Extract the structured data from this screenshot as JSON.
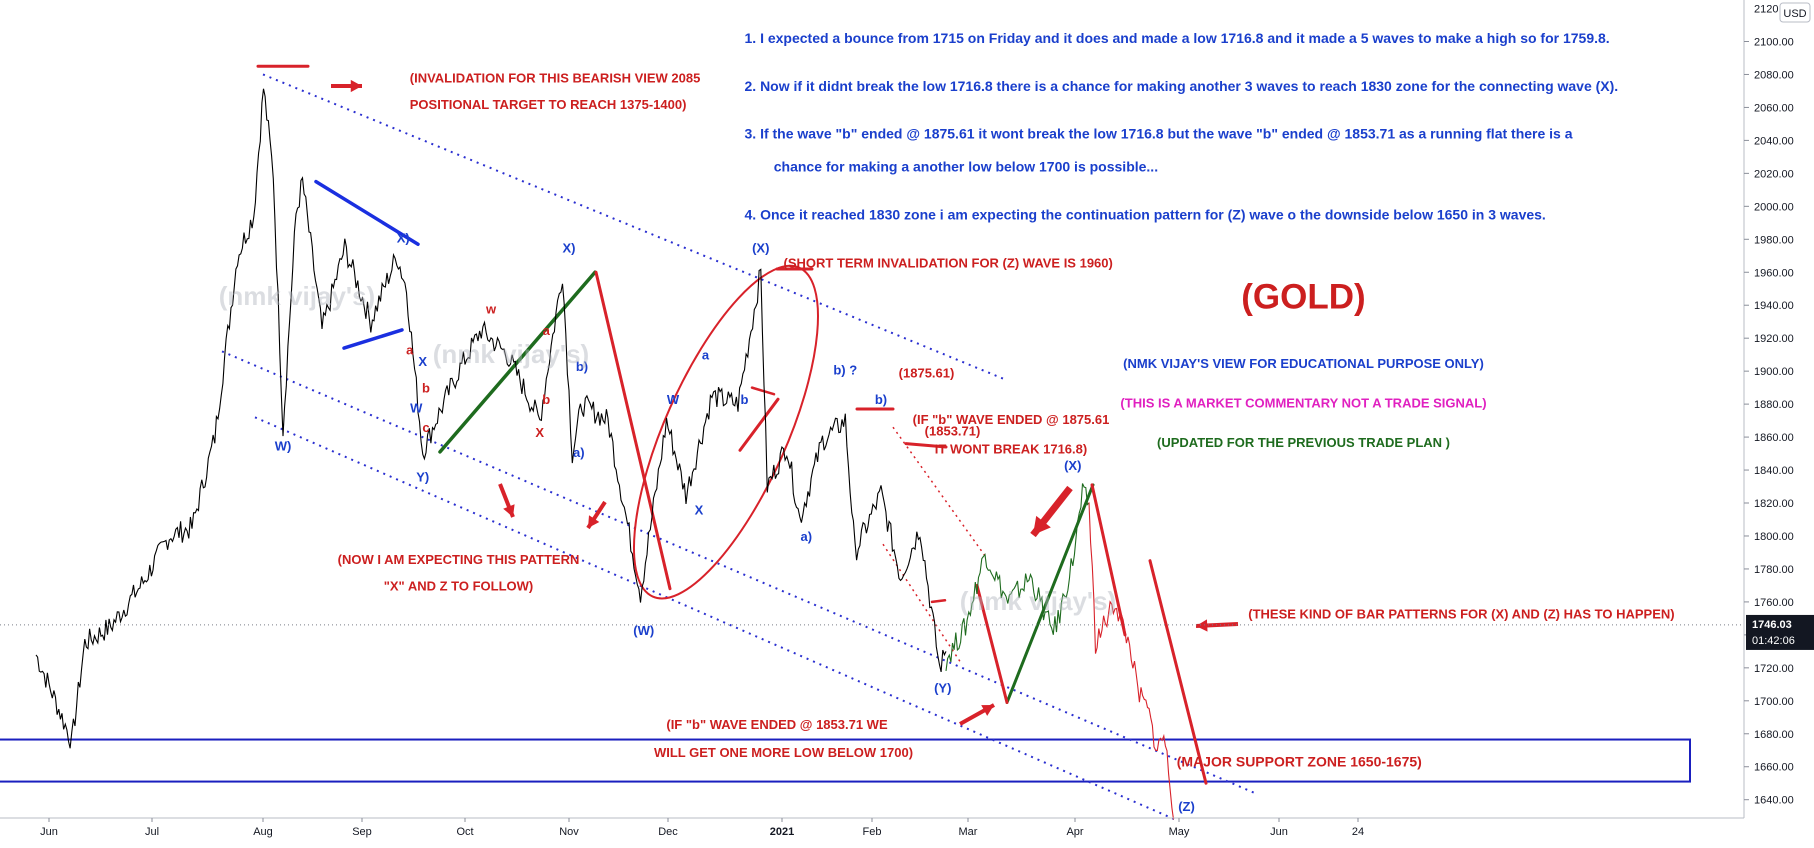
{
  "chart_data": {
    "type": "line",
    "instrument": "(GOLD)",
    "currency_badge": "USD",
    "price_label": "1746.03",
    "timer_label": "01:42:06",
    "ylim": [
      1625,
      2110
    ],
    "y_ticks": [
      1640,
      1660,
      1680,
      1700,
      1720,
      1740,
      1760,
      1780,
      1800,
      1820,
      1840,
      1860,
      1880,
      1900,
      1920,
      1940,
      1960,
      1980,
      2000,
      2020,
      2040,
      2060,
      2080,
      2100
    ],
    "y_tick_labels": [
      "1640.00",
      "1660.00",
      "1680.00",
      "1700.00",
      "1720.00",
      "1740.00",
      "1760.00",
      "1780.00",
      "1800.00",
      "1820.00",
      "1840.00",
      "1860.00",
      "1880.00",
      "1900.00",
      "1920.00",
      "1940.00",
      "1960.00",
      "1980.00",
      "2000.00",
      "2020.00",
      "2040.00",
      "2060.00",
      "2080.00",
      "2100.00"
    ],
    "top_tick_label": "2120.00",
    "x_labels": [
      "Jun",
      "Jul",
      "Aug",
      "Sep",
      "Oct",
      "Nov",
      "Dec",
      "2021",
      "Feb",
      "Mar",
      "Apr",
      "May",
      "Jun",
      "24"
    ],
    "series": [
      {
        "color": "#000000",
        "points": [
          [
            "2020-05-28",
            1728
          ],
          [
            "2020-06-03",
            1700
          ],
          [
            "2020-06-08",
            1675
          ],
          [
            "2020-06-12",
            1735
          ],
          [
            "2020-06-20",
            1745
          ],
          [
            "2020-06-30",
            1772
          ],
          [
            "2020-07-08",
            1800
          ],
          [
            "2020-07-15",
            1805
          ],
          [
            "2020-07-22",
            1860
          ],
          [
            "2020-07-29",
            1970
          ],
          [
            "2020-08-03",
            1995
          ],
          [
            "2020-08-06",
            2072
          ],
          [
            "2020-08-09",
            2020
          ],
          [
            "2020-08-12",
            1865
          ],
          [
            "2020-08-16",
            1995
          ],
          [
            "2020-08-18",
            2015
          ],
          [
            "2020-08-24",
            1925
          ],
          [
            "2020-08-31",
            1975
          ],
          [
            "2020-09-08",
            1930
          ],
          [
            "2020-09-16",
            1970
          ],
          [
            "2020-09-19",
            1950
          ],
          [
            "2020-09-24",
            1851
          ],
          [
            "2020-09-28",
            1870
          ],
          [
            "2020-10-05",
            1900
          ],
          [
            "2020-10-12",
            1925
          ],
          [
            "2020-10-20",
            1910
          ],
          [
            "2020-10-30",
            1870
          ],
          [
            "2020-11-06",
            1960
          ],
          [
            "2020-11-09",
            1850
          ],
          [
            "2020-11-12",
            1880
          ],
          [
            "2020-11-20",
            1870
          ],
          [
            "2020-11-30",
            1765
          ],
          [
            "2020-12-08",
            1870
          ],
          [
            "2020-12-14",
            1825
          ],
          [
            "2020-12-22",
            1885
          ],
          [
            "2020-12-30",
            1880
          ],
          [
            "2021-01-06",
            1960
          ],
          [
            "2021-01-08",
            1830
          ],
          [
            "2021-01-14",
            1855
          ],
          [
            "2021-01-18",
            1810
          ],
          [
            "2021-01-25",
            1858
          ],
          [
            "2021-02-01",
            1870
          ],
          [
            "2021-02-04",
            1790
          ],
          [
            "2021-02-12",
            1826
          ],
          [
            "2021-02-18",
            1775
          ],
          [
            "2021-02-24",
            1805
          ],
          [
            "2021-03-02",
            1720
          ],
          [
            "2021-03-04",
            1730
          ]
        ]
      },
      {
        "color": "#1e6b1e",
        "points": [
          [
            "2021-03-04",
            1725
          ],
          [
            "2021-03-10",
            1745
          ],
          [
            "2021-03-16",
            1790
          ],
          [
            "2021-03-23",
            1760
          ],
          [
            "2021-03-30",
            1775
          ],
          [
            "2021-04-05",
            1745
          ],
          [
            "2021-04-07",
            1745
          ],
          [
            "2021-04-12",
            1785
          ],
          [
            "2021-04-15",
            1825
          ],
          [
            "2021-04-17",
            1820
          ]
        ]
      },
      {
        "color": "#d8222a",
        "points": [
          [
            "2021-04-17",
            1820
          ],
          [
            "2021-04-19",
            1735
          ],
          [
            "2021-04-25",
            1760
          ],
          [
            "2021-04-30",
            1730
          ],
          [
            "2021-05-02",
            1705
          ],
          [
            "2021-05-05",
            1695
          ],
          [
            "2021-05-08",
            1670
          ],
          [
            "2021-05-10",
            1680
          ],
          [
            "2021-05-12",
            1650
          ],
          [
            "2021-05-13",
            1628
          ]
        ]
      }
    ],
    "annotations": [
      {
        "text": "1. I expected a bounce from 1715 on Friday and it does and made a low 1716.8 and it made a 5 waves to make a high so for 1759.8.",
        "x": "2021-01-01",
        "y": 2099,
        "color": "#1a3fcc",
        "size": 14,
        "anchor": "start"
      },
      {
        "text": "2. Now if it didnt break the low 1716.8 there is a chance for making another 3 waves to reach 1830 zone for the connecting wave (X).",
        "x": "2021-01-01",
        "y": 2070,
        "color": "#1a3fcc",
        "size": 14,
        "anchor": "start"
      },
      {
        "text": "3. If the wave \"b\" ended @ 1875.61 it wont break the low 1716.8 but the wave \"b\" ended @ 1853.71 as a running flat there is a",
        "x": "2021-01-01",
        "y": 2041,
        "color": "#1a3fcc",
        "size": 14,
        "anchor": "start"
      },
      {
        "text": "chance for making a another low below 1700 is possible...",
        "x": "2021-01-10",
        "y": 2021,
        "color": "#1a3fcc",
        "size": 14,
        "anchor": "start"
      },
      {
        "text": "4. Once it reached 1830 zone i am expecting the continuation pattern for (Z) wave o the downside below 1650 in 3 waves.",
        "x": "2021-01-01",
        "y": 1992,
        "color": "#1a3fcc",
        "size": 14,
        "anchor": "start"
      },
      {
        "text": "(INVALIDATION FOR THIS BEARISH VIEW 2085",
        "x": "2020-09-20",
        "y": 2075,
        "color": "#cc1f1f",
        "size": 13,
        "anchor": "start"
      },
      {
        "text": "POSITIONAL TARGET TO REACH 1375-1400)",
        "x": "2020-09-20",
        "y": 2059,
        "color": "#cc1f1f",
        "size": 13,
        "anchor": "start"
      },
      {
        "text": "(SHORT TERM INVALIDATION FOR (Z) WAVE IS 1960)",
        "x": "2021-01-13",
        "y": 1963,
        "color": "#cc1f1f",
        "size": 13,
        "anchor": "start"
      },
      {
        "text": "(GOLD)",
        "x": "2021-06-22",
        "y": 1938,
        "color": "#cc1f1f",
        "size": 35,
        "anchor": "middle"
      },
      {
        "text": "(NMK VIJAY'S VIEW FOR EDUCATIONAL PURPOSE ONLY)",
        "x": "2021-06-22",
        "y": 1902,
        "color": "#1a3fcc",
        "size": 13,
        "anchor": "middle"
      },
      {
        "text": "(THIS IS A MARKET COMMENTARY NOT A TRADE SIGNAL)",
        "x": "2021-06-22",
        "y": 1878,
        "color": "#e020c0",
        "size": 13,
        "anchor": "middle"
      },
      {
        "text": "(UPDATED FOR THE PREVIOUS TRADE PLAN )",
        "x": "2021-06-22",
        "y": 1854,
        "color": "#1e6b1e",
        "size": 13,
        "anchor": "middle"
      },
      {
        "text": "(IF \"b\" WAVE ENDED @ 1875.61",
        "x": "2021-03-24",
        "y": 1868,
        "color": "#cc1f1f",
        "size": 13,
        "anchor": "middle"
      },
      {
        "text": "IT WONT BREAK 1716.8)",
        "x": "2021-03-24",
        "y": 1850,
        "color": "#cc1f1f",
        "size": 13,
        "anchor": "middle"
      },
      {
        "text": "(1875.61)",
        "x": "2021-02-26",
        "y": 1896,
        "color": "#cc1f1f",
        "size": 13,
        "anchor": "middle"
      },
      {
        "text": "(1853.71)",
        "x": "2021-03-06",
        "y": 1861,
        "color": "#cc1f1f",
        "size": 13,
        "anchor": "middle"
      },
      {
        "text": "(NOW I AM EXPECTING THIS PATTERN",
        "x": "2020-10-05",
        "y": 1783,
        "color": "#cc1f1f",
        "size": 13,
        "anchor": "middle"
      },
      {
        "text": "\"X\" AND Z TO FOLLOW)",
        "x": "2020-10-05",
        "y": 1767,
        "color": "#cc1f1f",
        "size": 13,
        "anchor": "middle"
      },
      {
        "text": "(THESE KIND OF BAR PATTERNS FOR (X) AND (Z) HAS TO HAPPEN)",
        "x": "2021-06-05",
        "y": 1750,
        "color": "#cc1f1f",
        "size": 13,
        "anchor": "start"
      },
      {
        "text": "(IF \"b\" WAVE ENDED @ 1853.71 WE",
        "x": "2021-01-11",
        "y": 1683,
        "color": "#cc1f1f",
        "size": 13,
        "anchor": "middle"
      },
      {
        "text": "WILL GET ONE MORE LOW BELOW 1700)",
        "x": "2021-01-13",
        "y": 1666,
        "color": "#cc1f1f",
        "size": 13,
        "anchor": "middle"
      },
      {
        "text": "(MAJOR SUPPORT ZONE 1650-1675)",
        "x": "2021-05-14",
        "y": 1660,
        "color": "#cc1f1f",
        "size": 14,
        "anchor": "start"
      }
    ],
    "wave_labels": [
      {
        "text": "W)",
        "x": "2020-08-12",
        "y": 1852,
        "color": "#1a3fcc"
      },
      {
        "text": "X)",
        "x": "2020-09-18",
        "y": 1978,
        "color": "#1a3fcc"
      },
      {
        "text": "X",
        "x": "2020-09-24",
        "y": 1903,
        "color": "#1a3fcc"
      },
      {
        "text": "W",
        "x": "2020-09-22",
        "y": 1875,
        "color": "#1a3fcc"
      },
      {
        "text": "b",
        "x": "2020-09-25",
        "y": 1887,
        "color": "#cc1f1f"
      },
      {
        "text": "a",
        "x": "2020-09-20",
        "y": 1910,
        "color": "#cc1f1f"
      },
      {
        "text": "c",
        "x": "2020-09-25",
        "y": 1863,
        "color": "#cc1f1f"
      },
      {
        "text": "Y)",
        "x": "2020-09-24",
        "y": 1833,
        "color": "#1a3fcc"
      },
      {
        "text": "w",
        "x": "2020-10-15",
        "y": 1935,
        "color": "#cc1f1f"
      },
      {
        "text": "a",
        "x": "2020-11-01",
        "y": 1922,
        "color": "#cc1f1f"
      },
      {
        "text": "b",
        "x": "2020-11-01",
        "y": 1880,
        "color": "#cc1f1f"
      },
      {
        "text": "X",
        "x": "2020-10-30",
        "y": 1860,
        "color": "#cc1f1f"
      },
      {
        "text": "b)",
        "x": "2020-11-12",
        "y": 1900,
        "color": "#1a3fcc"
      },
      {
        "text": "a)",
        "x": "2020-11-11",
        "y": 1848,
        "color": "#1a3fcc"
      },
      {
        "text": "X)",
        "x": "2020-11-08",
        "y": 1972,
        "color": "#1a3fcc"
      },
      {
        "text": "(W)",
        "x": "2020-12-01",
        "y": 1740,
        "color": "#1a3fcc"
      },
      {
        "text": "W",
        "x": "2020-12-10",
        "y": 1880,
        "color": "#1a3fcc"
      },
      {
        "text": "a",
        "x": "2020-12-20",
        "y": 1907,
        "color": "#1a3fcc"
      },
      {
        "text": "X",
        "x": "2020-12-18",
        "y": 1813,
        "color": "#1a3fcc"
      },
      {
        "text": "b",
        "x": "2021-01-01",
        "y": 1880,
        "color": "#1a3fcc"
      },
      {
        "text": "(X)",
        "x": "2021-01-06",
        "y": 1972,
        "color": "#1a3fcc"
      },
      {
        "text": "b) ?",
        "x": "2021-02-01",
        "y": 1898,
        "color": "#1a3fcc"
      },
      {
        "text": "b)",
        "x": "2021-02-12",
        "y": 1880,
        "color": "#1a3fcc"
      },
      {
        "text": "a)",
        "x": "2021-01-20",
        "y": 1797,
        "color": "#1a3fcc"
      },
      {
        "text": "(Y)",
        "x": "2021-03-03",
        "y": 1705,
        "color": "#1a3fcc"
      },
      {
        "text": "(X)",
        "x": "2021-04-12",
        "y": 1840,
        "color": "#1a3fcc"
      },
      {
        "text": "(Z)",
        "x": "2021-05-17",
        "y": 1633,
        "color": "#1a3fcc"
      }
    ],
    "watermark": "(nmk vijay's)"
  }
}
